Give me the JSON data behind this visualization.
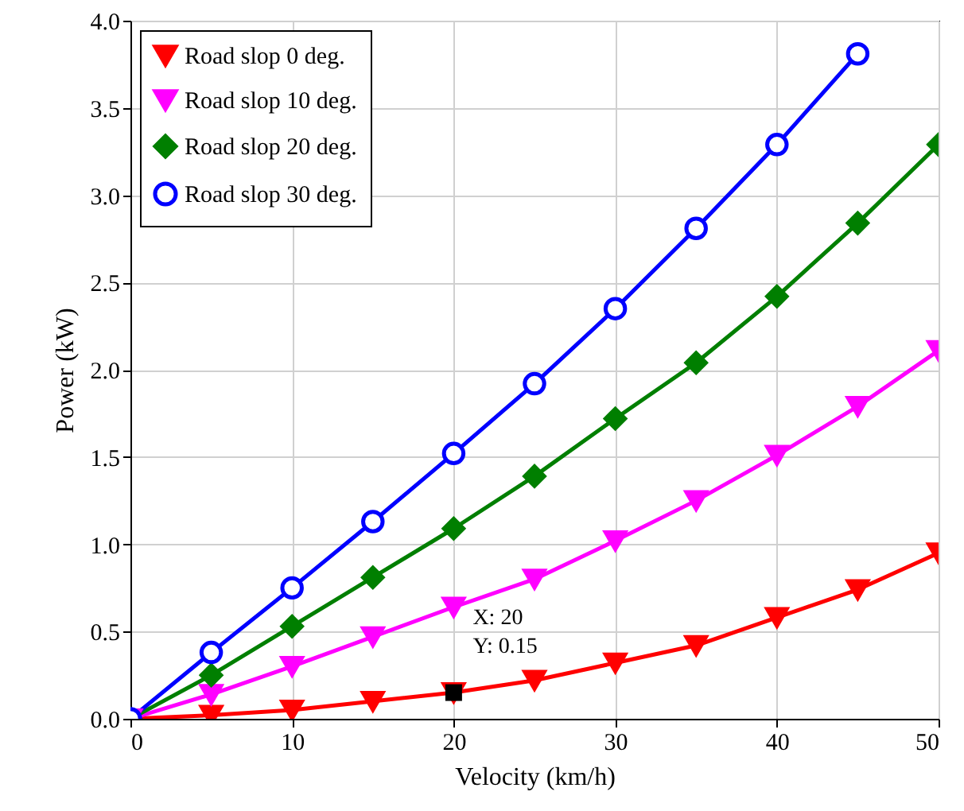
{
  "chart_data": {
    "type": "line",
    "xlabel": "Velocity (km/h)",
    "ylabel": "Power (kW)",
    "x": [
      0,
      5,
      10,
      15,
      20,
      25,
      30,
      35,
      40,
      45,
      50
    ],
    "series": [
      {
        "name": "Road slop 0 deg.",
        "color": "#ff0000",
        "marker": "triangle",
        "values": [
          0,
          0.02,
          0.05,
          0.1,
          0.15,
          0.22,
          0.32,
          0.42,
          0.58,
          0.74,
          0.95
        ]
      },
      {
        "name": "Road slop 10 deg.",
        "color": "#ff00ff",
        "marker": "triangle",
        "values": [
          0,
          0.14,
          0.3,
          0.47,
          0.64,
          0.8,
          1.02,
          1.25,
          1.51,
          1.79,
          2.11
        ]
      },
      {
        "name": "Road slop 20 deg.",
        "color": "#007f00",
        "marker": "diamond",
        "values": [
          0,
          0.25,
          0.53,
          0.81,
          1.09,
          1.39,
          1.72,
          2.04,
          2.42,
          2.84,
          3.29
        ]
      },
      {
        "name": "Road slop 30 deg.",
        "color": "#0000ff",
        "marker": "circle",
        "values": [
          0,
          0.38,
          0.75,
          1.13,
          1.52,
          1.92,
          2.35,
          2.81,
          3.29,
          3.81,
          null
        ]
      }
    ],
    "xlim": [
      0,
      50
    ],
    "xticks": [
      0,
      10,
      20,
      30,
      40,
      50
    ],
    "ylim": [
      0,
      4
    ],
    "yticks": [
      {
        "value": 0,
        "label": "0.0"
      },
      {
        "value": 0.5,
        "label": "0.5"
      },
      {
        "value": 1,
        "label": "1.0"
      },
      {
        "value": 1.5,
        "label": "1.5"
      },
      {
        "value": 2,
        "label": "2.0"
      },
      {
        "value": 2.5,
        "label": "2.5"
      },
      {
        "value": 3,
        "label": "3.0"
      },
      {
        "value": 3.5,
        "label": "3.5"
      },
      {
        "value": 4,
        "label": "4.0"
      }
    ],
    "annotations": [
      {
        "text": "X: 20\nY: 0.15",
        "x": 20,
        "y": 0.15
      }
    ],
    "grid": true,
    "legend": "top left",
    "line_style": "solid"
  }
}
